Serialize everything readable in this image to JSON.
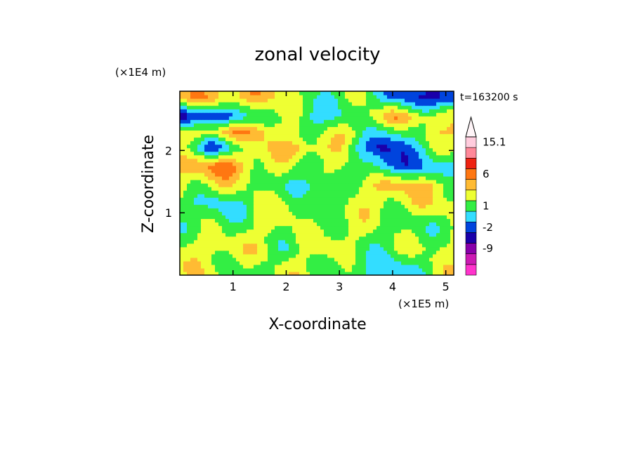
{
  "chart_data": {
    "type": "heatmap",
    "title": "zonal velocity",
    "xlabel": "X-coordinate",
    "ylabel": "Z-coordinate",
    "x_multiplier": "(×1E5 m)",
    "y_multiplier": "(×1E4 m)",
    "time_label": "t=163200 s",
    "xlim": [
      0,
      5.15
    ],
    "ylim": [
      0,
      2.95
    ],
    "x_ticks": [
      1,
      2,
      3,
      4,
      5
    ],
    "y_ticks": [
      1,
      2
    ],
    "colorbar": {
      "levels": [
        {
          "color": "#ff33cc",
          "label": ""
        },
        {
          "color": "#cc1ab3",
          "label": ""
        },
        {
          "color": "#8800aa",
          "label": "-9"
        },
        {
          "color": "#1a00aa",
          "label": ""
        },
        {
          "color": "#0044dd",
          "label": "-2"
        },
        {
          "color": "#33ddff",
          "label": ""
        },
        {
          "color": "#33ee44",
          "label": "1"
        },
        {
          "color": "#eeff33",
          "label": ""
        },
        {
          "color": "#ffbb33",
          "label": ""
        },
        {
          "color": "#ff7711",
          "label": "6"
        },
        {
          "color": "#ee2211",
          "label": ""
        },
        {
          "color": "#ff8899",
          "label": ""
        },
        {
          "color": "#ffccdd",
          "label": "15.1"
        }
      ]
    },
    "field_bands": [
      {
        "y": 2.85,
        "x": [
          0.0,
          1.5,
          2.4,
          3.0,
          3.6,
          4.2,
          5.15
        ],
        "level": [
          8,
          8,
          6,
          6,
          6,
          4,
          3
        ]
      },
      {
        "y": 2.55,
        "x": [
          0.0,
          1.0,
          1.8,
          2.5,
          3.3,
          4.0,
          5.15
        ],
        "level": [
          3,
          4,
          7,
          5,
          6,
          8,
          7
        ]
      },
      {
        "y": 2.3,
        "x": [
          0.0,
          0.8,
          1.6,
          2.4,
          3.2,
          4.0,
          5.15
        ],
        "level": [
          7,
          8,
          8,
          6,
          7,
          5,
          8
        ]
      },
      {
        "y": 2.05,
        "x": [
          0.0,
          0.6,
          1.4,
          2.2,
          3.0,
          3.8,
          5.15
        ],
        "level": [
          6,
          4,
          7,
          8,
          7,
          3,
          7
        ]
      },
      {
        "y": 1.75,
        "x": [
          0.0,
          0.9,
          1.5,
          2.3,
          3.1,
          3.9,
          5.15
        ],
        "level": [
          8,
          9,
          7,
          6,
          7,
          4,
          5
        ]
      },
      {
        "y": 1.45,
        "x": [
          0.0,
          1.0,
          1.8,
          2.6,
          3.4,
          4.0,
          5.15
        ],
        "level": [
          7,
          7,
          6,
          5,
          7,
          8,
          7
        ]
      },
      {
        "y": 1.15,
        "x": [
          0.0,
          0.7,
          1.3,
          2.0,
          2.8,
          3.6,
          5.15
        ],
        "level": [
          6,
          5,
          6,
          7,
          6,
          7,
          7
        ]
      },
      {
        "y": 0.8,
        "x": [
          0.0,
          0.9,
          1.7,
          2.4,
          3.2,
          4.0,
          5.15
        ],
        "level": [
          6,
          6,
          7,
          6,
          7,
          6,
          6
        ]
      },
      {
        "y": 0.45,
        "x": [
          0.0,
          0.8,
          1.4,
          2.0,
          2.8,
          3.6,
          5.15
        ],
        "level": [
          7,
          7,
          7,
          6,
          7,
          6,
          7
        ]
      },
      {
        "y": 0.15,
        "x": [
          0.0,
          0.6,
          1.5,
          2.2,
          3.0,
          4.0,
          5.15
        ],
        "level": [
          7,
          7,
          6,
          7,
          6,
          5,
          7
        ]
      }
    ]
  }
}
